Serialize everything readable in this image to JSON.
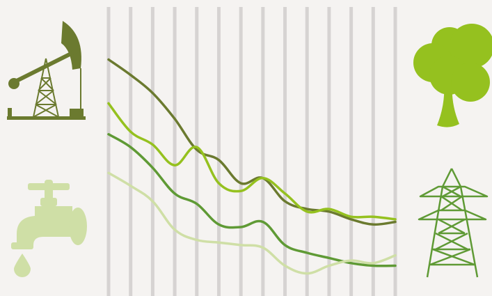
{
  "colors": {
    "background": "#f5f3f1",
    "gridline": "#d6d3d2",
    "oil": "#6b7a2f",
    "water": "#cfdfa6",
    "tree": "#95c11f",
    "power": "#5f9a35"
  },
  "icons": {
    "top_left": "oil-pumpjack-icon",
    "bottom_left": "water-tap-icon",
    "top_right": "tree-icon",
    "bottom_right": "power-pylon-icon"
  },
  "chart_data": {
    "type": "line",
    "title": "",
    "xlabel": "",
    "ylabel": "",
    "grid": "vertical lines",
    "x": [
      0,
      1,
      2,
      3,
      4,
      5,
      6,
      7,
      8,
      9,
      10,
      11,
      12,
      13
    ],
    "ylim": [
      0,
      100
    ],
    "series": [
      {
        "color": "#6b7a2f",
        "values": [
          85,
          79,
          72,
          62,
          50,
          46,
          37,
          39,
          30,
          27,
          26,
          23,
          21,
          22
        ]
      },
      {
        "color": "#95c11f",
        "values": [
          68,
          57,
          52,
          44,
          51,
          37,
          34,
          39,
          33,
          26,
          27,
          24,
          24,
          23
        ]
      },
      {
        "color": "#5f9a35",
        "values": [
          56,
          51,
          43,
          33,
          29,
          21,
          20,
          22,
          13,
          10,
          8,
          6,
          5,
          5
        ]
      },
      {
        "color": "#cfdfa6",
        "values": [
          41,
          36,
          30,
          19,
          15,
          14,
          13,
          12,
          5,
          2,
          5,
          7,
          6,
          9
        ]
      }
    ]
  }
}
